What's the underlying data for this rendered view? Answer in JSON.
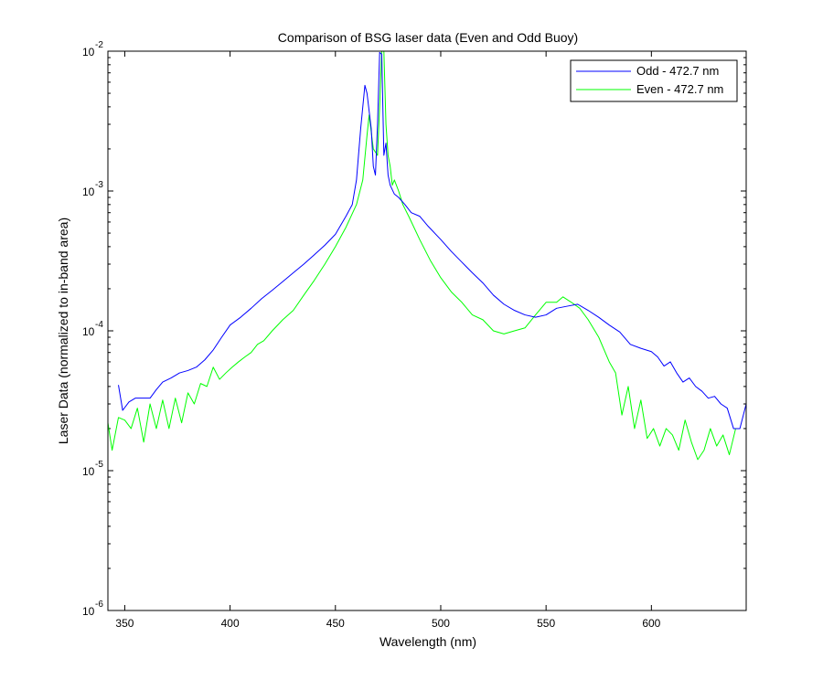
{
  "chart_data": {
    "type": "line",
    "title": "Comparison of BSG laser data (Even and Odd Buoy)",
    "xlabel": "Wavelength (nm)",
    "ylabel": "Laser Data (normalized to in-band area)",
    "xlim": [
      342,
      645
    ],
    "ylim": [
      1e-06,
      0.01
    ],
    "yscale": "log",
    "grid": false,
    "legend_position": "top-right",
    "x_ticks": [
      350,
      400,
      450,
      500,
      550,
      600
    ],
    "x_tick_labels": [
      "350",
      "400",
      "450",
      "500",
      "550",
      "600"
    ],
    "y_ticks": [
      1e-06,
      1e-05,
      0.0001,
      0.001,
      0.01
    ],
    "y_tick_labels": [
      {
        "base": "10",
        "exp": "-6"
      },
      {
        "base": "10",
        "exp": "-5"
      },
      {
        "base": "10",
        "exp": "-4"
      },
      {
        "base": "10",
        "exp": "-3"
      },
      {
        "base": "10",
        "exp": "-2"
      }
    ],
    "series": [
      {
        "name": "Odd - 472.7 nm",
        "color": "#0000ff",
        "x": [
          347,
          349,
          352,
          355,
          358,
          362,
          365,
          368,
          372,
          376,
          380,
          384,
          388,
          392,
          396,
          400,
          405,
          410,
          415,
          420,
          425,
          430,
          435,
          440,
          445,
          450,
          455,
          458,
          460,
          462,
          464,
          465,
          467,
          468,
          469,
          470,
          471,
          472,
          473,
          474,
          475,
          476,
          478,
          480,
          483,
          486,
          490,
          494,
          500,
          505,
          510,
          515,
          520,
          525,
          530,
          535,
          540,
          545,
          550,
          555,
          560,
          565,
          570,
          575,
          580,
          585,
          590,
          595,
          600,
          603,
          606,
          609,
          612,
          615,
          618,
          621,
          624,
          627,
          630,
          633,
          636,
          639,
          642,
          645
        ],
        "y": [
          4.1e-05,
          2.7e-05,
          3.1e-05,
          3.3e-05,
          3.3e-05,
          3.3e-05,
          3.8e-05,
          4.3e-05,
          4.6e-05,
          5e-05,
          5.2e-05,
          5.5e-05,
          6.2e-05,
          7.3e-05,
          9e-05,
          0.00011,
          0.000125,
          0.000145,
          0.00017,
          0.000195,
          0.000225,
          0.00026,
          0.0003,
          0.00035,
          0.00041,
          0.00049,
          0.00066,
          0.0008,
          0.0012,
          0.0028,
          0.0057,
          0.005,
          0.0028,
          0.0015,
          0.0013,
          0.003,
          0.0098,
          0.0095,
          0.0018,
          0.0022,
          0.0013,
          0.0011,
          0.00095,
          0.0009,
          0.0008,
          0.0007,
          0.00066,
          0.00056,
          0.00045,
          0.00037,
          0.00031,
          0.00026,
          0.00022,
          0.00018,
          0.000155,
          0.00014,
          0.00013,
          0.000125,
          0.00013,
          0.000145,
          0.00015,
          0.000155,
          0.00014,
          0.000125,
          0.00011,
          9.8e-05,
          8e-05,
          7.5e-05,
          7.1e-05,
          6.5e-05,
          5.6e-05,
          6e-05,
          5e-05,
          4.3e-05,
          4.6e-05,
          4e-05,
          3.7e-05,
          3.3e-05,
          3.4e-05,
          3e-05,
          2.8e-05,
          2e-05,
          2e-05,
          3e-05
        ]
      },
      {
        "name": "Even - 472.7 nm",
        "color": "#00ff00",
        "x": [
          342,
          344,
          347,
          350,
          353,
          356,
          359,
          362,
          365,
          368,
          371,
          374,
          377,
          380,
          383,
          386,
          389,
          392,
          395,
          398,
          401,
          404,
          407,
          410,
          413,
          416,
          420,
          425,
          430,
          435,
          440,
          445,
          450,
          455,
          460,
          463,
          465,
          466,
          468,
          470,
          471,
          472,
          473,
          474,
          475,
          476,
          477,
          478,
          480,
          482,
          485,
          490,
          495,
          500,
          505,
          510,
          515,
          520,
          525,
          530,
          535,
          540,
          545,
          550,
          555,
          558,
          562,
          566,
          570,
          575,
          580,
          583,
          586,
          589,
          592,
          595,
          598,
          601,
          604,
          607,
          610,
          613,
          616,
          619,
          622,
          625,
          628,
          631,
          634,
          637,
          640
        ],
        "y": [
          2.2e-05,
          1.4e-05,
          2.4e-05,
          2.3e-05,
          2e-05,
          2.8e-05,
          1.6e-05,
          3e-05,
          2e-05,
          3.2e-05,
          2e-05,
          3.3e-05,
          2.2e-05,
          3.6e-05,
          3e-05,
          4.2e-05,
          4e-05,
          5.5e-05,
          4.5e-05,
          5e-05,
          5.5e-05,
          6e-05,
          6.5e-05,
          7e-05,
          8e-05,
          8.5e-05,
          0.0001,
          0.00012,
          0.00014,
          0.00018,
          0.00023,
          0.0003,
          0.0004,
          0.00055,
          0.0008,
          0.0012,
          0.0025,
          0.0035,
          0.002,
          0.0018,
          0.004,
          0.01,
          0.01,
          0.003,
          0.0018,
          0.0015,
          0.0011,
          0.0012,
          0.001,
          0.0008,
          0.00065,
          0.00045,
          0.00032,
          0.00024,
          0.00019,
          0.00016,
          0.00013,
          0.00012,
          0.0001,
          9.5e-05,
          0.0001,
          0.000105,
          0.00013,
          0.00016,
          0.00016,
          0.000175,
          0.00016,
          0.000145,
          0.00012,
          9e-05,
          6e-05,
          5e-05,
          2.5e-05,
          4e-05,
          2e-05,
          3.2e-05,
          1.7e-05,
          2e-05,
          1.5e-05,
          2e-05,
          1.8e-05,
          1.4e-05,
          2.3e-05,
          1.6e-05,
          1.2e-05,
          1.4e-05,
          2e-05,
          1.5e-05,
          1.8e-05,
          1.3e-05,
          2e-05
        ]
      }
    ]
  }
}
